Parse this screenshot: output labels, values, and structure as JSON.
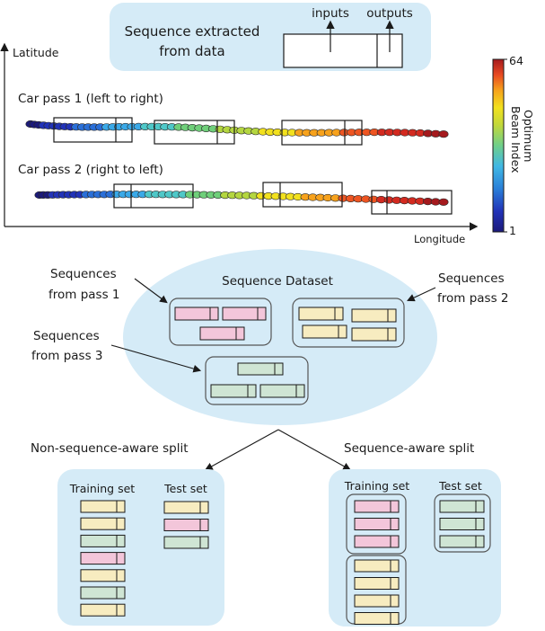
{
  "top_box": {
    "title_line1": "Sequence extracted",
    "title_line2": "from data",
    "inputs_label": "inputs",
    "outputs_label": "outputs"
  },
  "plot": {
    "y_axis_label": "Latitude",
    "x_axis_label": "Longitude",
    "pass1_label": "Car pass 1 (left to right)",
    "pass2_label": "Car pass 2 (right to left)"
  },
  "colorbar": {
    "title_line1": "Optimum",
    "title_line2": "Beam Index",
    "max_label": "64",
    "min_label": "1",
    "colors": [
      "#1c1a7a",
      "#2233b8",
      "#2a6fd8",
      "#3aa9e8",
      "#4fc8c8",
      "#6fcf7a",
      "#b4d640",
      "#f2e11e",
      "#f7a21c",
      "#ee5522",
      "#d32a20",
      "#a51a1e"
    ]
  },
  "dataset": {
    "title": "Sequence Dataset",
    "from_pass1": [
      "Sequences",
      "from pass 1"
    ],
    "from_pass2": [
      "Sequences",
      "from pass 2"
    ],
    "from_pass3": [
      "Sequences",
      "from pass 3"
    ]
  },
  "splits": {
    "non_seq_title": "Non-sequence-aware split",
    "seq_title": "Sequence-aware split",
    "training_label": "Training set",
    "test_label": "Test set",
    "non_seq_training": [
      "yellow",
      "yellow",
      "green",
      "pink",
      "yellow",
      "green",
      "yellow"
    ],
    "non_seq_test": [
      "yellow",
      "pink",
      "green"
    ],
    "seq_training_pink": [
      "pink",
      "pink",
      "pink"
    ],
    "seq_training_yellow": [
      "yellow",
      "yellow",
      "yellow",
      "yellow"
    ],
    "seq_test_green": [
      "green",
      "green",
      "green"
    ]
  },
  "colors": {
    "light_blue": "#d5ebf7",
    "pink": "#f3c6da",
    "yellow": "#f7ecc0",
    "green": "#cfe5d4",
    "box_outline": "#1a1a1a"
  }
}
